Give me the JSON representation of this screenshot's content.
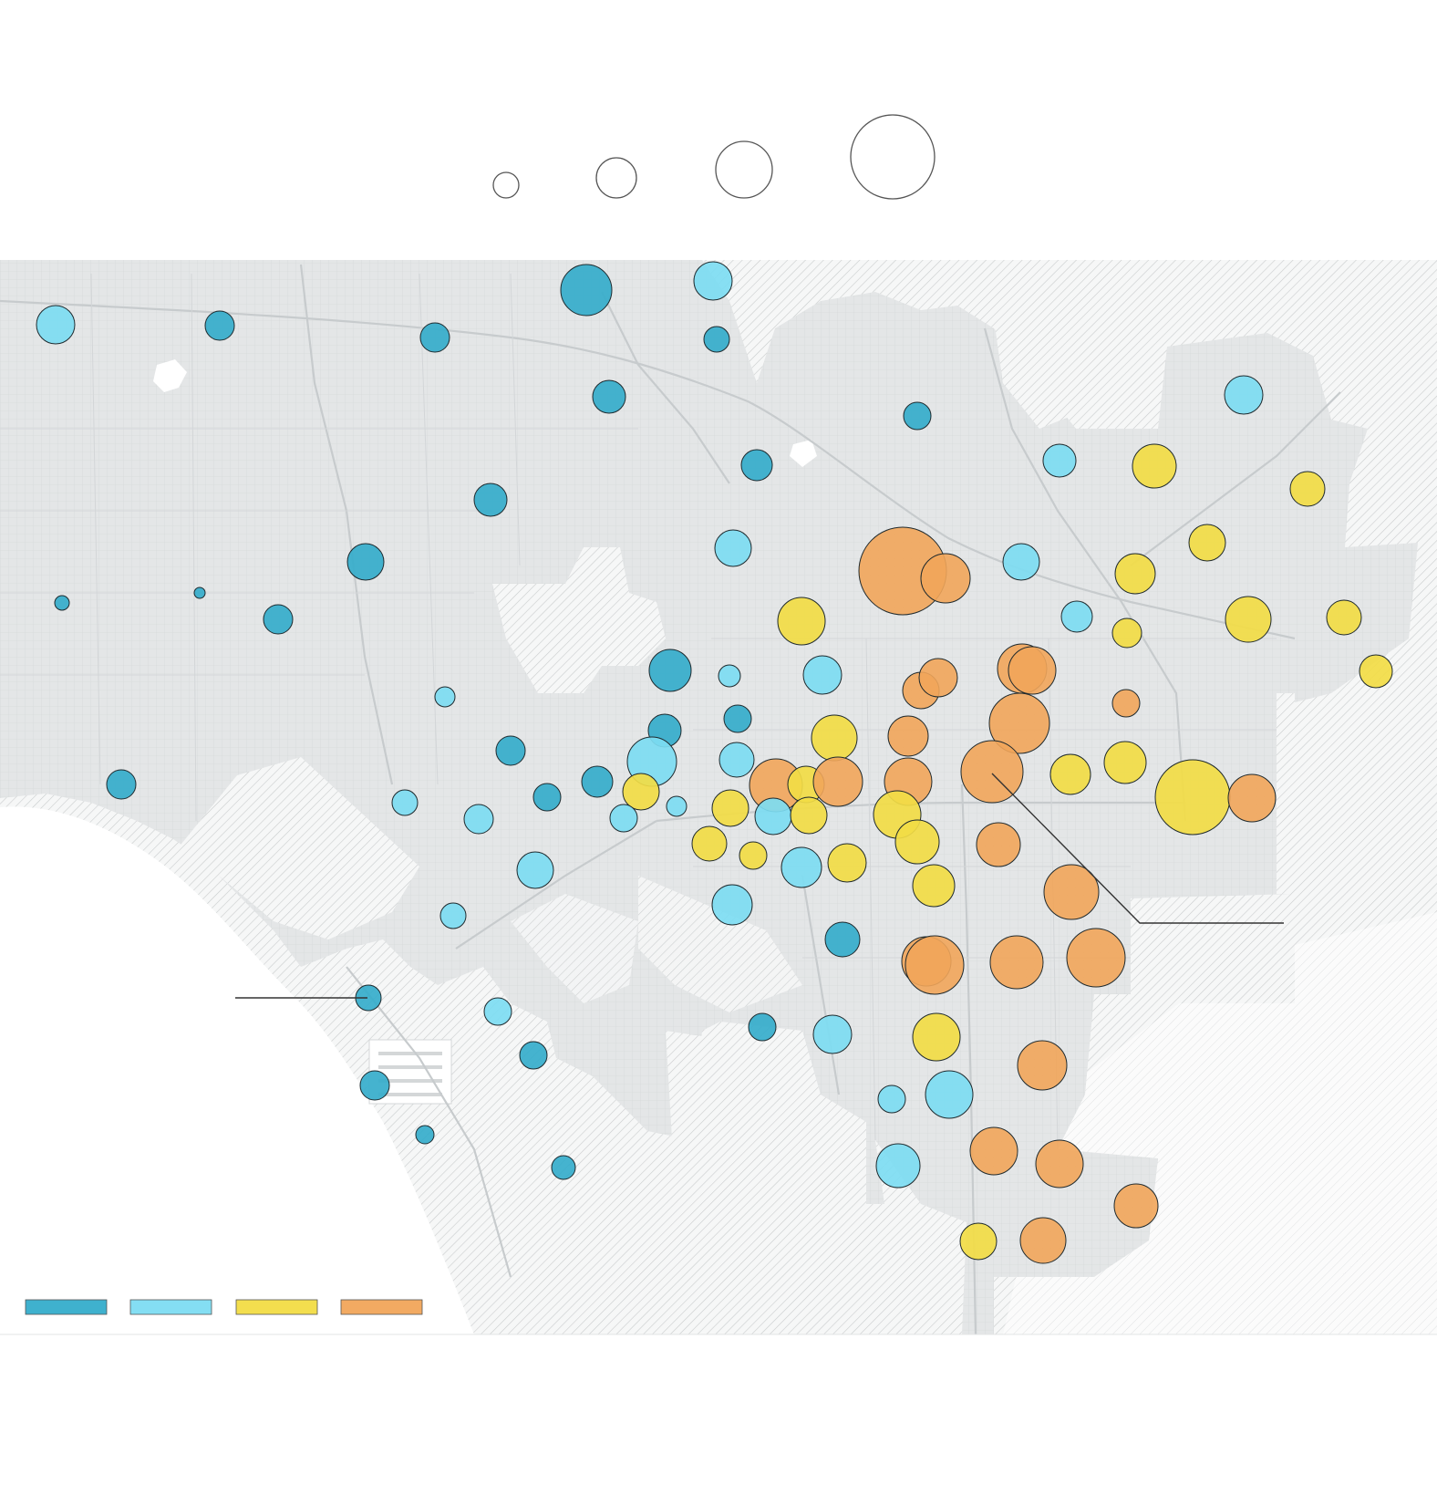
{
  "colors": {
    "background": "#ffffff",
    "land": "#e4e6e7",
    "ocean": "#ffffff",
    "road": "#cfd2d4",
    "hatch": "#c4c7c9",
    "outline": "#1f2a2e",
    "dark_blue": "#35adcb",
    "light_blue": "#7ddcf2",
    "yellow": "#f2dc45",
    "orange": "#f1a55a",
    "leader_line": "#333333"
  },
  "size_legend": {
    "circles": [
      {
        "name": "size-legend-smallest"
      },
      {
        "name": "size-legend-small"
      },
      {
        "name": "size-legend-medium"
      },
      {
        "name": "size-legend-large"
      }
    ]
  },
  "color_legend": {
    "swatches": [
      {
        "name": "legend-swatch-dark-blue",
        "color": "dark_blue"
      },
      {
        "name": "legend-swatch-light-blue",
        "color": "light_blue"
      },
      {
        "name": "legend-swatch-yellow",
        "color": "yellow"
      },
      {
        "name": "legend-swatch-orange",
        "color": "orange"
      }
    ]
  },
  "map": {
    "icons": [
      "map-basemap-icon",
      "hatched-area-icon"
    ]
  }
}
